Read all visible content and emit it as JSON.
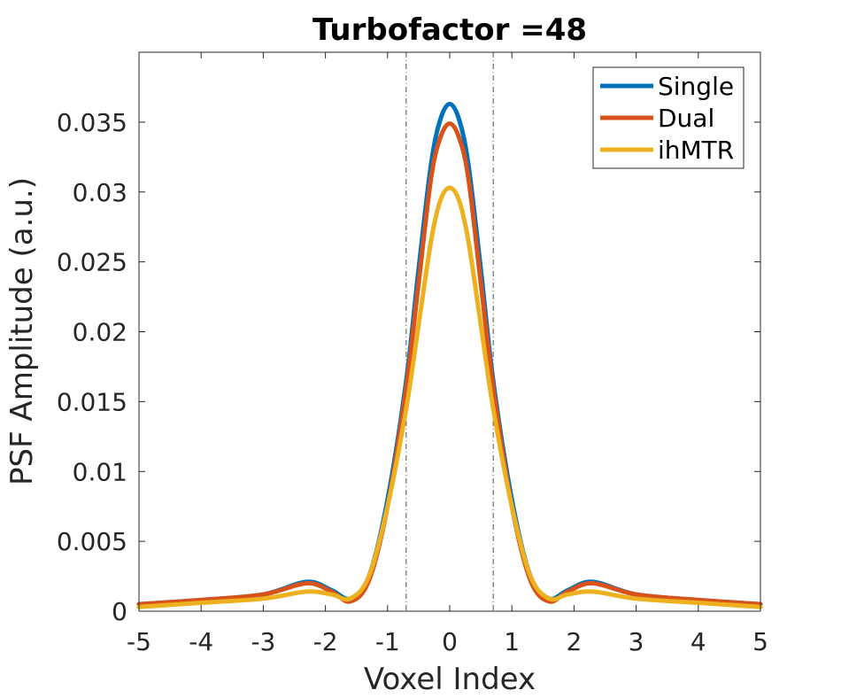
{
  "chart_data": {
    "type": "line",
    "title": "Turbofactor =48",
    "xlabel": "Voxel Index",
    "ylabel": "PSF Amplitude (a.u.)",
    "xlim": [
      -5,
      5
    ],
    "ylim": [
      0,
      0.04
    ],
    "xticks": [
      -5,
      -4,
      -3,
      -2,
      -1,
      0,
      1,
      2,
      3,
      4,
      5
    ],
    "xtick_labels": [
      "-5",
      "-4",
      "-3",
      "-2",
      "-1",
      "0",
      "1",
      "2",
      "3",
      "4",
      "5"
    ],
    "yticks": [
      0,
      0.005,
      0.01,
      0.015,
      0.02,
      0.025,
      0.03,
      0.035
    ],
    "ytick_labels": [
      "0",
      "0.005",
      "0.01",
      "0.015",
      "0.02",
      "0.025",
      "0.03",
      "0.035"
    ],
    "grid": false,
    "legend_position": "top-right",
    "vlines": [
      -0.7,
      0.7
    ],
    "series": [
      {
        "name": "Single",
        "color": "#0072BD",
        "points": [
          [
            -5,
            0.0005
          ],
          [
            -4,
            0.0008
          ],
          [
            -3,
            0.0012
          ],
          [
            -2.3,
            0.0021
          ],
          [
            -1.9,
            0.0015
          ],
          [
            -1.6,
            0.0009
          ],
          [
            -1.3,
            0.0025
          ],
          [
            -1.0,
            0.008
          ],
          [
            -0.7,
            0.0165
          ],
          [
            -0.5,
            0.0245
          ],
          [
            -0.3,
            0.032
          ],
          [
            -0.15,
            0.0352
          ],
          [
            0,
            0.0363
          ],
          [
            0.15,
            0.0352
          ],
          [
            0.3,
            0.032
          ],
          [
            0.5,
            0.0245
          ],
          [
            0.7,
            0.0165
          ],
          [
            1.0,
            0.008
          ],
          [
            1.3,
            0.0025
          ],
          [
            1.6,
            0.0009
          ],
          [
            1.9,
            0.0015
          ],
          [
            2.3,
            0.0021
          ],
          [
            3,
            0.0012
          ],
          [
            4,
            0.0008
          ],
          [
            5,
            0.0005
          ]
        ]
      },
      {
        "name": "Dual",
        "color": "#D95319",
        "points": [
          [
            -5,
            0.0005
          ],
          [
            -4,
            0.0008
          ],
          [
            -3,
            0.0012
          ],
          [
            -2.3,
            0.002
          ],
          [
            -1.9,
            0.0014
          ],
          [
            -1.6,
            0.0007
          ],
          [
            -1.3,
            0.0022
          ],
          [
            -1.0,
            0.0075
          ],
          [
            -0.7,
            0.016
          ],
          [
            -0.5,
            0.0235
          ],
          [
            -0.3,
            0.031
          ],
          [
            -0.15,
            0.0339
          ],
          [
            0,
            0.0349
          ],
          [
            0.15,
            0.0339
          ],
          [
            0.3,
            0.031
          ],
          [
            0.5,
            0.0235
          ],
          [
            0.7,
            0.016
          ],
          [
            1.0,
            0.0075
          ],
          [
            1.3,
            0.0022
          ],
          [
            1.6,
            0.0007
          ],
          [
            1.9,
            0.0014
          ],
          [
            2.3,
            0.002
          ],
          [
            3,
            0.0012
          ],
          [
            4,
            0.0008
          ],
          [
            5,
            0.0005
          ]
        ]
      },
      {
        "name": "ihMTR",
        "color": "#EDB120",
        "points": [
          [
            -5,
            0.0003
          ],
          [
            -4,
            0.0006
          ],
          [
            -3,
            0.0009
          ],
          [
            -2.3,
            0.0014
          ],
          [
            -1.9,
            0.0012
          ],
          [
            -1.6,
            0.0009
          ],
          [
            -1.3,
            0.0025
          ],
          [
            -1.0,
            0.0075
          ],
          [
            -0.7,
            0.0145
          ],
          [
            -0.5,
            0.0205
          ],
          [
            -0.3,
            0.0265
          ],
          [
            -0.15,
            0.0294
          ],
          [
            0,
            0.0303
          ],
          [
            0.15,
            0.0294
          ],
          [
            0.3,
            0.0265
          ],
          [
            0.5,
            0.0205
          ],
          [
            0.7,
            0.0145
          ],
          [
            1.0,
            0.0075
          ],
          [
            1.3,
            0.0025
          ],
          [
            1.6,
            0.0009
          ],
          [
            1.9,
            0.0012
          ],
          [
            2.3,
            0.0014
          ],
          [
            3,
            0.0009
          ],
          [
            4,
            0.0006
          ],
          [
            5,
            0.0003
          ]
        ]
      }
    ]
  }
}
